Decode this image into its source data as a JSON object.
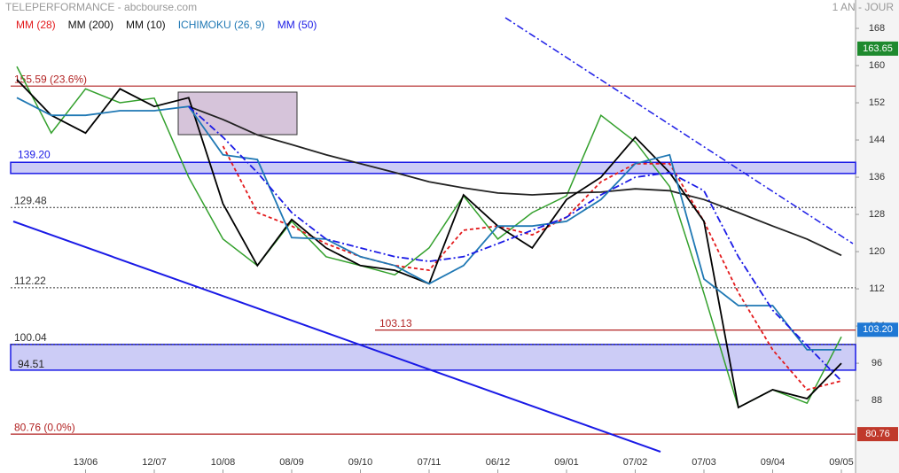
{
  "chart_data": {
    "type": "line",
    "title": "TELEPERFORMANCE - abcbourse.com",
    "period": "1 AN - JOUR",
    "categories": [
      null,
      null,
      "13/06",
      null,
      "12/07",
      null,
      "10/08",
      null,
      "08/09",
      null,
      "09/10",
      null,
      "07/11",
      null,
      "06/12",
      null,
      "09/01",
      null,
      "07/02",
      null,
      "07/03",
      null,
      "09/04",
      null,
      "09/05"
    ],
    "close": [
      159.8,
      145.5,
      155,
      152,
      153,
      136,
      122.7,
      117,
      126.5,
      118.9,
      117,
      115,
      120.8,
      132,
      122.7,
      128.4,
      132,
      149.3,
      143.6,
      134,
      111,
      86.5,
      90.3,
      87.4,
      101.7
    ],
    "close_color": "#33a02c",
    "series": [
      {
        "name": "MM (28)",
        "color": "#e31a1c",
        "dash": "4,3",
        "values": [
          null,
          null,
          null,
          null,
          null,
          null,
          142.7,
          128.4,
          125.5,
          121.7,
          118.9,
          117,
          116,
          124.6,
          125.5,
          123.6,
          127.4,
          135,
          138.9,
          138.9,
          126.5,
          111.2,
          98.9,
          90.3,
          92.2
        ]
      },
      {
        "name": "MM (200)",
        "color": "#222222",
        "dash": "",
        "values": [
          null,
          null,
          null,
          null,
          null,
          151.2,
          148.4,
          145.1,
          143,
          140.8,
          138.9,
          137,
          135,
          133.7,
          132.6,
          132.2,
          132.6,
          132.8,
          133.5,
          133.1,
          131.2,
          128.4,
          125.5,
          122.7,
          119.2
        ]
      },
      {
        "name": "MM (10)",
        "color": "#000000",
        "dash": "",
        "values": [
          157,
          149.3,
          145.5,
          155,
          151.2,
          153.1,
          130.3,
          117,
          126.9,
          120.8,
          117,
          116,
          113.1,
          132.2,
          125.5,
          120.8,
          131.2,
          136,
          144.6,
          137,
          126.5,
          86.5,
          90.3,
          88.4,
          96
        ]
      },
      {
        "name": "ICHIMOKU (26, 9)",
        "color": "#1f78b4",
        "dash": "",
        "values": [
          153.1,
          149.3,
          149.3,
          150.3,
          150.3,
          151.2,
          140.8,
          139.8,
          123,
          122.7,
          118.9,
          117,
          113.1,
          117,
          125.5,
          125.5,
          126.5,
          131.2,
          138.9,
          140.8,
          114.1,
          108.4,
          108.4,
          98.9,
          98.9
        ]
      },
      {
        "name": "MM (50)",
        "color": "#1a1ae6",
        "dash": "8,3,2,3",
        "values": [
          null,
          null,
          null,
          null,
          null,
          151.2,
          144.6,
          137,
          128.4,
          122.7,
          120.8,
          118.9,
          117.9,
          118.9,
          121.7,
          124.6,
          127.4,
          132.2,
          136,
          137,
          133.1,
          118.9,
          107.4,
          99.8,
          92.2
        ]
      }
    ],
    "ylim": [
      72.4,
      174.1
    ],
    "yticks": [
      88,
      96,
      104,
      112,
      120,
      128,
      136,
      144,
      152,
      160,
      168
    ],
    "levels": [
      {
        "value": 155.59,
        "label": "155.59 (23.6%)",
        "color": "#b22222"
      },
      {
        "value": 129.48,
        "color": "#333333"
      },
      {
        "value": 112.22,
        "color": "#333333"
      },
      {
        "value": 103.13,
        "color": "#b22222"
      },
      {
        "value": 100.04,
        "color": "#333333"
      },
      {
        "value": 80.76,
        "label": "80.76  (0.0%)",
        "color": "#b22222"
      }
    ],
    "bands": [
      {
        "from": 136.8,
        "to": {
          "value": 139.2,
          "label": "139.20"
        }
      },
      {
        "from": {
          "value": 94.51,
          "label": "94.51"
        },
        "to": 100.04
      }
    ],
    "tags": [
      {
        "value": 163.65,
        "label": "163.65",
        "color": "#1e8a2e"
      },
      {
        "value": 103.2,
        "label": "103.20",
        "color": "#1f78d4"
      },
      {
        "value": 80.76,
        "label": "80.76",
        "color": "#c0392b"
      }
    ]
  }
}
